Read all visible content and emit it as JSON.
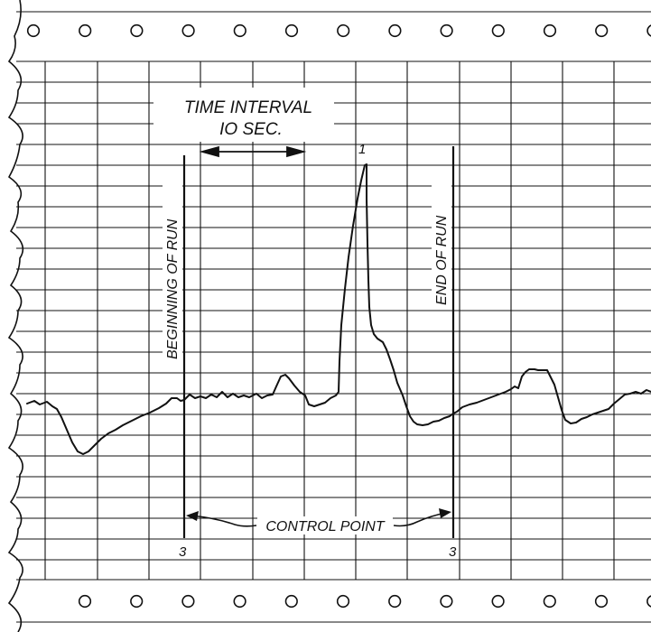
{
  "annotations": {
    "time_interval_title": "TIME INTERVAL",
    "time_interval_value": "IO SEC.",
    "beginning_of_run": "BEGINNING OF RUN",
    "end_of_run": "END OF RUN",
    "control_point": "CONTROL POINT",
    "peak_number": "1",
    "start_marker_number": "3",
    "end_marker_number": "3"
  }
}
